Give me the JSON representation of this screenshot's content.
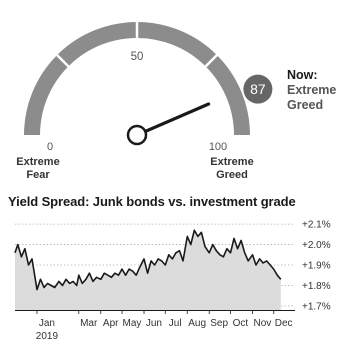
{
  "gauge": {
    "value": 87,
    "scale_labels": {
      "min": "0",
      "mid": "50",
      "max": "100"
    },
    "min_caption": "Extreme Fear",
    "max_caption": "Extreme Greed",
    "now_label": "Now:",
    "now_value": "Extreme Greed",
    "colors": {
      "arc": "#8c8c8c",
      "arc_light": "#d0d0d0",
      "dot": "#666666"
    }
  },
  "chart_data": {
    "type": "area",
    "title": "Yield Spread: Junk bonds vs. investment grade",
    "x_tick_labels": [
      "Jan",
      "Mar",
      "Apr",
      "May",
      "Jun",
      "Jul",
      "Aug",
      "Sep",
      "Oct",
      "Nov",
      "Dec"
    ],
    "x_year_label": "2019",
    "y_tick_labels": [
      "+2.1%",
      "+2.0%",
      "+1.9%",
      "+1.8%",
      "+1.7%"
    ],
    "y_ticks": [
      2.1,
      2.0,
      1.9,
      1.8,
      1.7
    ],
    "ylim": [
      1.68,
      2.13
    ],
    "xlim": [
      "2018-12-01",
      "2019-12-31"
    ],
    "series": [
      {
        "x": [
          "2018-12-01",
          "2018-12-05",
          "2018-12-10",
          "2018-12-15",
          "2018-12-20",
          "2018-12-25",
          "2019-01-01",
          "2019-01-06",
          "2019-01-11",
          "2019-01-16",
          "2019-01-21",
          "2019-01-26",
          "2019-02-01",
          "2019-02-06",
          "2019-02-11",
          "2019-02-16",
          "2019-02-21",
          "2019-02-26",
          "2019-03-01",
          "2019-03-06",
          "2019-03-11",
          "2019-03-16",
          "2019-03-21",
          "2019-03-26",
          "2019-04-01",
          "2019-04-06",
          "2019-04-11",
          "2019-04-16",
          "2019-04-21",
          "2019-04-26",
          "2019-05-01",
          "2019-05-06",
          "2019-05-11",
          "2019-05-16",
          "2019-05-21",
          "2019-05-26",
          "2019-06-01",
          "2019-06-06",
          "2019-06-11",
          "2019-06-16",
          "2019-06-21",
          "2019-06-26",
          "2019-07-01",
          "2019-07-06",
          "2019-07-11",
          "2019-07-16",
          "2019-07-21",
          "2019-07-26",
          "2019-08-01",
          "2019-08-06",
          "2019-08-11",
          "2019-08-16",
          "2019-08-21",
          "2019-08-26",
          "2019-09-01",
          "2019-09-06",
          "2019-09-11",
          "2019-09-16",
          "2019-09-21",
          "2019-09-26",
          "2019-10-01",
          "2019-10-06",
          "2019-10-11",
          "2019-10-16",
          "2019-10-21",
          "2019-10-26",
          "2019-11-01",
          "2019-11-06",
          "2019-11-11",
          "2019-11-16",
          "2019-11-21",
          "2019-11-26",
          "2019-12-01",
          "2019-12-06",
          "2019-12-11"
        ],
        "values": [
          1.96,
          2.0,
          1.94,
          1.98,
          1.9,
          1.93,
          1.78,
          1.83,
          1.79,
          1.81,
          1.8,
          1.79,
          1.82,
          1.8,
          1.83,
          1.81,
          1.82,
          1.8,
          1.85,
          1.81,
          1.83,
          1.86,
          1.82,
          1.84,
          1.83,
          1.86,
          1.85,
          1.84,
          1.86,
          1.85,
          1.88,
          1.85,
          1.88,
          1.87,
          1.85,
          1.89,
          1.93,
          1.86,
          1.92,
          1.9,
          1.93,
          1.92,
          1.9,
          1.95,
          1.93,
          1.96,
          1.97,
          1.92,
          2.04,
          2.0,
          2.07,
          2.04,
          2.06,
          1.99,
          1.96,
          2.0,
          1.97,
          1.95,
          1.94,
          1.98,
          1.96,
          2.03,
          1.98,
          2.02,
          1.96,
          1.92,
          1.95,
          1.9,
          1.93,
          1.91,
          1.92,
          1.9,
          1.88,
          1.85,
          1.83
        ]
      }
    ]
  }
}
